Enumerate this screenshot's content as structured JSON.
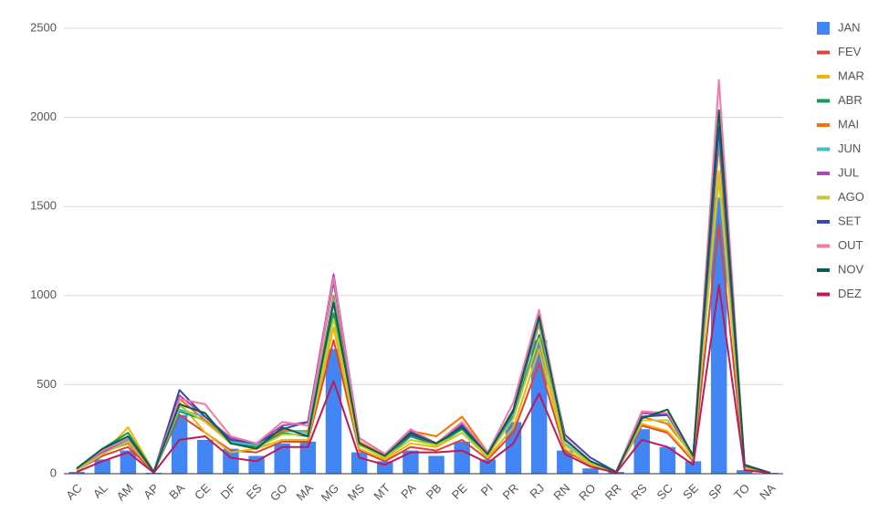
{
  "chart_data": {
    "type": "combo",
    "categories": [
      "AC",
      "AL",
      "AM",
      "AP",
      "BA",
      "CE",
      "DF",
      "ES",
      "GO",
      "MA",
      "MG",
      "MS",
      "MT",
      "PA",
      "PB",
      "PE",
      "PI",
      "PR",
      "RJ",
      "RN",
      "RO",
      "RR",
      "RS",
      "SC",
      "SE",
      "SP",
      "TO",
      "NA"
    ],
    "ylim": [
      0,
      2500
    ],
    "yticks": [
      0,
      500,
      1000,
      1500,
      2000,
      2500
    ],
    "grid": true,
    "legend": "right",
    "series": [
      {
        "name": "JAN",
        "type": "bar",
        "color": "#4285f4",
        "values": [
          10,
          80,
          130,
          5,
          330,
          190,
          140,
          100,
          170,
          180,
          700,
          120,
          70,
          130,
          100,
          180,
          80,
          290,
          750,
          130,
          30,
          10,
          250,
          150,
          70,
          1550,
          20,
          5
        ]
      },
      {
        "name": "FEV",
        "type": "line",
        "color": "#db4437",
        "values": [
          20,
          100,
          150,
          10,
          330,
          230,
          130,
          120,
          180,
          180,
          750,
          130,
          70,
          150,
          130,
          190,
          80,
          230,
          620,
          130,
          50,
          10,
          270,
          230,
          70,
          1400,
          30,
          5
        ]
      },
      {
        "name": "MAR",
        "type": "line",
        "color": "#f4b400",
        "values": [
          20,
          110,
          260,
          10,
          400,
          230,
          120,
          140,
          190,
          190,
          820,
          140,
          80,
          170,
          150,
          230,
          90,
          260,
          700,
          140,
          50,
          10,
          280,
          240,
          80,
          1700,
          30,
          5
        ]
      },
      {
        "name": "ABR",
        "type": "line",
        "color": "#0f9d58",
        "values": [
          25,
          140,
          230,
          10,
          350,
          300,
          170,
          150,
          230,
          210,
          900,
          160,
          90,
          210,
          160,
          250,
          100,
          330,
          780,
          160,
          60,
          10,
          300,
          300,
          90,
          1900,
          40,
          5
        ]
      },
      {
        "name": "MAI",
        "type": "line",
        "color": "#ff6d01",
        "values": [
          25,
          120,
          170,
          10,
          420,
          300,
          180,
          160,
          240,
          240,
          1000,
          180,
          100,
          240,
          210,
          320,
          120,
          350,
          840,
          170,
          60,
          10,
          320,
          280,
          100,
          1850,
          40,
          5
        ]
      },
      {
        "name": "JUN",
        "type": "line",
        "color": "#46bdc6",
        "values": [
          25,
          120,
          190,
          10,
          360,
          320,
          180,
          160,
          250,
          230,
          980,
          170,
          95,
          230,
          170,
          260,
          110,
          340,
          860,
          170,
          60,
          10,
          320,
          330,
          100,
          1900,
          45,
          5
        ]
      },
      {
        "name": "JUL",
        "type": "line",
        "color": "#ab47bc",
        "values": [
          25,
          120,
          180,
          10,
          440,
          320,
          200,
          170,
          270,
          290,
          1120,
          200,
          110,
          240,
          170,
          280,
          110,
          360,
          900,
          200,
          70,
          10,
          340,
          330,
          100,
          1950,
          45,
          5
        ]
      },
      {
        "name": "AGO",
        "type": "line",
        "color": "#c0ca33",
        "values": [
          20,
          110,
          180,
          10,
          380,
          290,
          170,
          140,
          220,
          220,
          870,
          160,
          90,
          190,
          160,
          230,
          100,
          310,
          760,
          160,
          60,
          10,
          300,
          300,
          90,
          1650,
          40,
          5
        ]
      },
      {
        "name": "SET",
        "type": "line",
        "color": "#3949ab",
        "values": [
          30,
          130,
          200,
          10,
          470,
          320,
          190,
          170,
          250,
          290,
          1080,
          200,
          110,
          220,
          170,
          270,
          110,
          350,
          880,
          220,
          90,
          10,
          320,
          330,
          100,
          1950,
          45,
          5
        ]
      },
      {
        "name": "OUT",
        "type": "line",
        "color": "#f07aa8",
        "values": [
          30,
          130,
          200,
          10,
          420,
          390,
          210,
          170,
          290,
          270,
          1100,
          200,
          110,
          250,
          170,
          290,
          120,
          400,
          920,
          200,
          70,
          10,
          350,
          340,
          100,
          2210,
          50,
          5
        ]
      },
      {
        "name": "NOV",
        "type": "line",
        "color": "#0d5e4f",
        "values": [
          30,
          140,
          210,
          10,
          390,
          340,
          170,
          140,
          260,
          210,
          960,
          170,
          100,
          230,
          170,
          260,
          110,
          360,
          880,
          190,
          70,
          10,
          310,
          360,
          100,
          2040,
          50,
          5
        ]
      },
      {
        "name": "DEZ",
        "type": "line",
        "color": "#c2185b",
        "values": [
          10,
          70,
          120,
          5,
          190,
          210,
          90,
          70,
          150,
          150,
          520,
          90,
          50,
          120,
          120,
          130,
          60,
          170,
          450,
          110,
          40,
          5,
          190,
          150,
          50,
          1060,
          20,
          5
        ]
      }
    ]
  }
}
